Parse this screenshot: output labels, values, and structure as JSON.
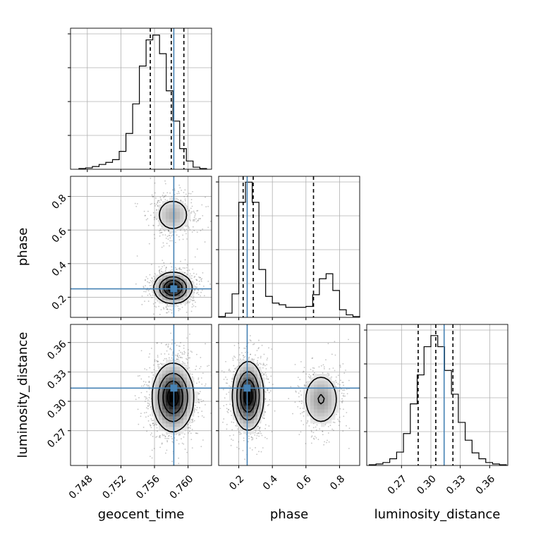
{
  "chart_data": {
    "type": "corner",
    "colors": {
      "truth": "#4682b4",
      "line": "#000000",
      "grid": "#b0b0b0",
      "points": "#555555"
    },
    "labels": {
      "geocent_time": "geocent_time",
      "phase": "phase",
      "luminosity_distance": "luminosity_distance"
    },
    "truths": {
      "geocent_time": 0.7583,
      "phase": 0.25,
      "luminosity_distance": 0.3135
    },
    "ranges": {
      "geocent_time": [
        0.746,
        0.7628
      ],
      "phase": [
        0.08,
        0.92
      ],
      "luminosity_distance": [
        0.2345,
        0.3785
      ]
    },
    "ticks": {
      "geocent_time": {
        "values": [
          0.748,
          0.752,
          0.756,
          0.76
        ],
        "labels": [
          "0.748",
          "0.752",
          "0.756",
          "0.760"
        ]
      },
      "phase": {
        "values": [
          0.2,
          0.4,
          0.6,
          0.8
        ],
        "labels": [
          "0.2",
          "0.4",
          "0.6",
          "0.8"
        ]
      },
      "luminosity_distance": {
        "values": [
          0.27,
          0.3,
          0.33,
          0.36
        ],
        "labels": [
          "0.27",
          "0.30",
          "0.33",
          "0.36"
        ]
      }
    },
    "quantiles": {
      "geocent_time": [
        0.7555,
        0.758,
        0.7595
      ],
      "phase": [
        0.226,
        0.286,
        0.645
      ],
      "luminosity_distance": [
        0.287,
        0.305,
        0.3225
      ]
    },
    "histograms": {
      "geocent_time": {
        "edges": [
          0.747,
          0.7478,
          0.7486,
          0.7494,
          0.7502,
          0.751,
          0.7518,
          0.7526,
          0.7534,
          0.7542,
          0.755,
          0.7558,
          0.7566,
          0.7574,
          0.7582,
          0.759,
          0.7598,
          0.7606,
          0.7614,
          0.7622
        ],
        "counts": [
          1,
          2,
          4,
          7,
          10,
          14,
          26,
          52,
          95,
          150,
          188,
          195,
          168,
          114,
          70,
          30,
          12,
          3,
          1
        ],
        "max": 205
      },
      "phase": {
        "edges": [
          0.08,
          0.12,
          0.16,
          0.2,
          0.24,
          0.28,
          0.32,
          0.36,
          0.4,
          0.44,
          0.48,
          0.52,
          0.56,
          0.6,
          0.64,
          0.68,
          0.72,
          0.76,
          0.8,
          0.84,
          0.88,
          0.92
        ],
        "counts": [
          1,
          5,
          28,
          137,
          161,
          137,
          57,
          25,
          17,
          15,
          12,
          12,
          12,
          13,
          27,
          46,
          52,
          32,
          9,
          3,
          1
        ],
        "max": 168
      },
      "luminosity_distance": {
        "edges": [
          0.237,
          0.244,
          0.251,
          0.258,
          0.265,
          0.272,
          0.279,
          0.286,
          0.293,
          0.3,
          0.307,
          0.314,
          0.321,
          0.328,
          0.335,
          0.342,
          0.349,
          0.356,
          0.363,
          0.37,
          0.377
        ],
        "counts": [
          1,
          2,
          4,
          9,
          18,
          43,
          83,
          122,
          160,
          175,
          160,
          128,
          96,
          58,
          34,
          17,
          9,
          4,
          2,
          1
        ],
        "max": 190
      }
    },
    "densities": {
      "phase_vs_geocent_time": {
        "x": "geocent_time",
        "y": "phase",
        "components": [
          {
            "mx": 0.7582,
            "my": 0.255,
            "sx": 0.0011,
            "sy": 0.045,
            "w": 0.7
          },
          {
            "mx": 0.7582,
            "my": 0.69,
            "sx": 0.0012,
            "sy": 0.06,
            "w": 0.3
          }
        ],
        "scatter_count": 1500
      },
      "luminosity_distance_vs_geocent_time": {
        "x": "geocent_time",
        "y": "luminosity_distance",
        "components": [
          {
            "mx": 0.7582,
            "my": 0.304,
            "sx": 0.0012,
            "sy": 0.017,
            "w": 1.0
          }
        ],
        "scatter_count": 1500
      },
      "luminosity_distance_vs_phase": {
        "x": "phase",
        "y": "luminosity_distance",
        "components": [
          {
            "mx": 0.255,
            "my": 0.3055,
            "sx": 0.045,
            "sy": 0.017,
            "w": 0.7
          },
          {
            "mx": 0.69,
            "my": 0.302,
            "sx": 0.06,
            "sy": 0.015,
            "w": 0.3
          }
        ],
        "scatter_count": 1500
      }
    }
  }
}
